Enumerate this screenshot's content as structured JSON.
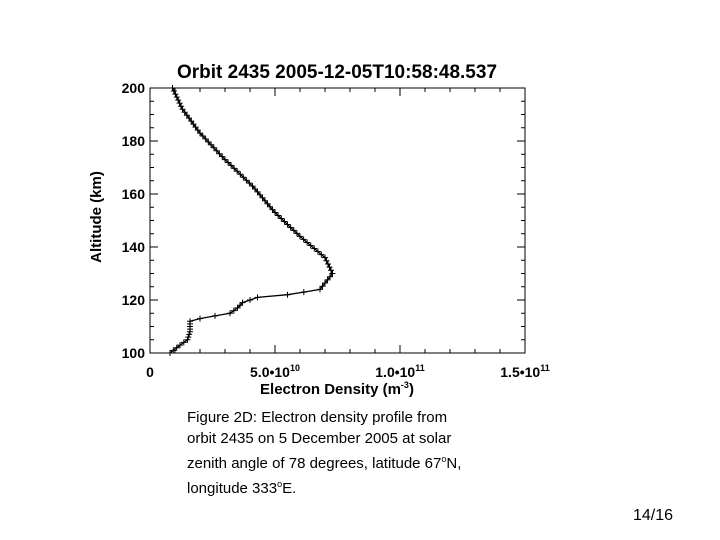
{
  "chart_data": {
    "type": "line",
    "title": "Orbit 2435  2005-12-05T10:58:48.537",
    "xlabel": "Electron Density (m",
    "xlabel_exponent": "-3",
    "xlabel_suffix": ")",
    "ylabel": "Altitude (km)",
    "xlim": [
      0,
      150000000000.0
    ],
    "ylim": [
      100,
      200
    ],
    "marker": "plus",
    "grid": false,
    "x_ticks": [
      {
        "value": 0,
        "label": "0"
      },
      {
        "value": 50000000000.0,
        "label": "5.0•10",
        "exponent": "10"
      },
      {
        "value": 100000000000.0,
        "label": "1.0•10",
        "exponent": "11"
      },
      {
        "value": 150000000000.0,
        "label": "1.5•10",
        "exponent": "11"
      }
    ],
    "y_ticks": [
      100,
      120,
      140,
      160,
      180,
      200
    ],
    "series": [
      {
        "x": [
          8000000000.0,
          12000000000.0,
          15000000000.0,
          16000000000.0,
          16000000000.0,
          16000000000.0,
          20000000000.0,
          26000000000.0,
          32000000000.0,
          35000000000.0,
          37000000000.0,
          43000000000.0,
          55000000000.0,
          68000000000.0,
          73000000000.0,
          70000000000.0,
          60000000000.0,
          50000000000.0,
          41000000000.0,
          30000000000.0,
          20000000000.0,
          13000000000.0,
          9000000000.0
        ],
        "y": [
          100,
          103,
          105,
          108,
          111,
          112,
          113,
          114,
          115,
          117,
          119,
          121,
          122,
          124,
          130,
          136,
          144,
          153,
          163,
          173,
          183,
          192,
          200
        ]
      }
    ]
  },
  "caption": {
    "line1": "Figure 2D: Electron density profile from",
    "line2": "orbit 2435 on 5 December 2005 at solar",
    "line3a": "zenith angle of 78 degrees, latitude 67",
    "line3_sup": "o",
    "line3b": "N,",
    "line4a": "longitude 333",
    "line4_sup": "o",
    "line4b": "E."
  },
  "page_number": "14/16"
}
